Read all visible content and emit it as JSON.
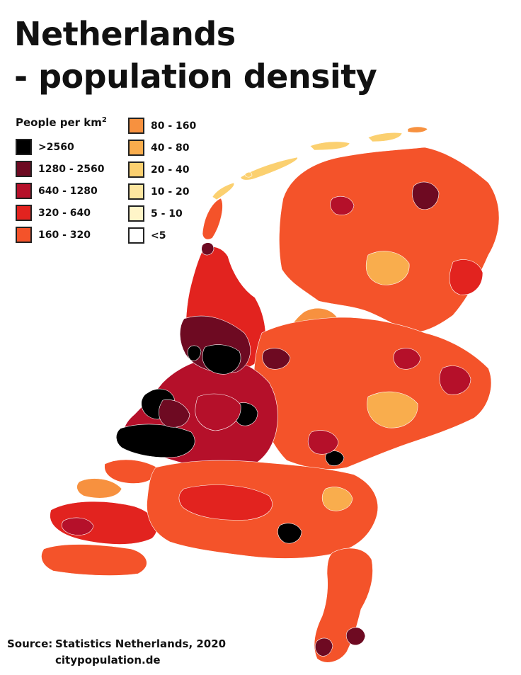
{
  "title": {
    "line1": "Netherlands",
    "line2": "- population density"
  },
  "legend": {
    "heading": "People per km",
    "heading_sup": "2",
    "items": [
      {
        "label": ">2560",
        "color": "#000000"
      },
      {
        "label": "1280 - 2560",
        "color": "#6e0a22"
      },
      {
        "label": "640 - 1280",
        "color": "#b5102a"
      },
      {
        "label": "320 - 640",
        "color": "#e2231f"
      },
      {
        "label": "160 - 320",
        "color": "#f4532a"
      },
      {
        "label": "80 - 160",
        "color": "#f7913f"
      },
      {
        "label": "40 - 80",
        "color": "#f9ad4d"
      },
      {
        "label": "20 - 40",
        "color": "#fbd070"
      },
      {
        "label": "10 - 20",
        "color": "#fde6a0"
      },
      {
        "label": "5 - 10",
        "color": "#fff5c8"
      },
      {
        "label": "<5",
        "color": "#ffffff"
      }
    ]
  },
  "source": {
    "label": "Source:",
    "text": "Statistics Netherlands, 2020",
    "site": "citypopulation.de"
  }
}
